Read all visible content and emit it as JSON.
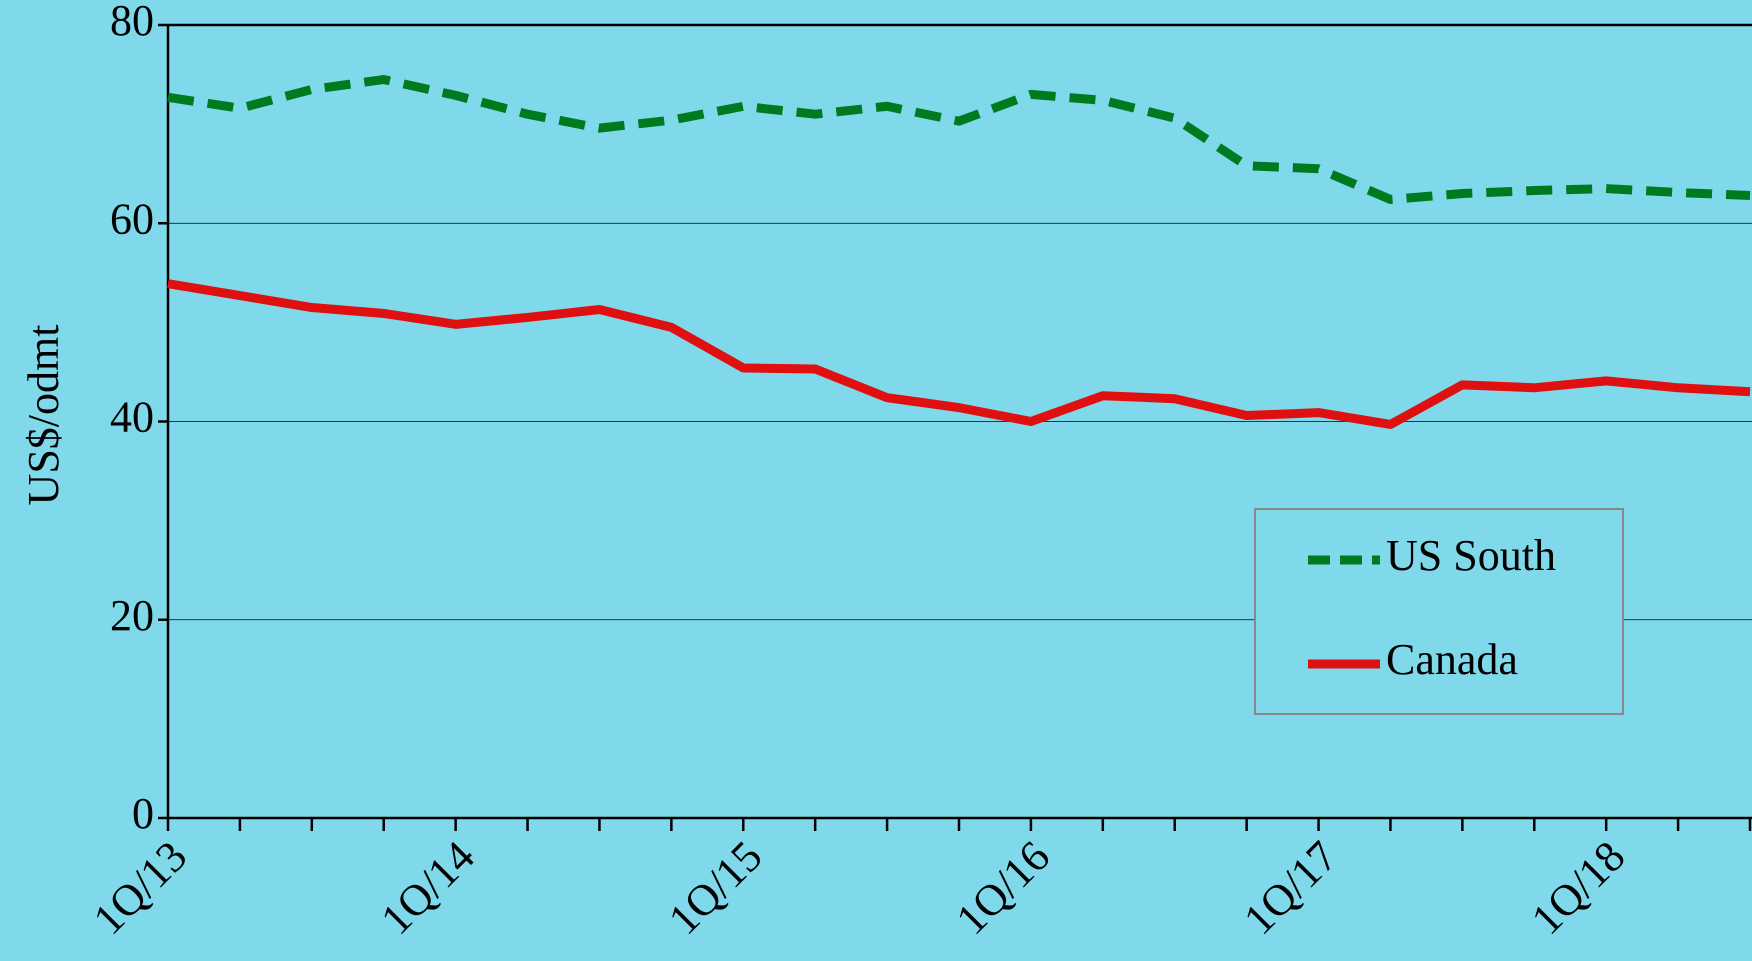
{
  "chart_data": {
    "type": "line",
    "y_label": "US$/odmt",
    "categories": [
      "1Q/13",
      null,
      null,
      null,
      "1Q/14",
      null,
      null,
      null,
      "1Q/15",
      null,
      null,
      null,
      "1Q/16",
      null,
      null,
      null,
      "1Q/17",
      null,
      null,
      null,
      "1Q/18",
      null,
      null
    ],
    "series": [
      {
        "name": "US South",
        "color": "#007a1f",
        "dash": true,
        "values": [
          72.7,
          71.6,
          73.5,
          74.5,
          72.9,
          71.0,
          69.6,
          70.4,
          71.8,
          71.0,
          71.8,
          70.3,
          73.0,
          72.4,
          70.6,
          65.8,
          65.5,
          62.4,
          63.0,
          63.3,
          63.5,
          63.1,
          62.8
        ]
      },
      {
        "name": "Canada",
        "color": "#e01010",
        "dash": false,
        "values": [
          53.9,
          52.7,
          51.5,
          50.9,
          49.8,
          50.5,
          51.3,
          49.5,
          45.4,
          45.3,
          42.4,
          41.4,
          40.0,
          42.6,
          42.3,
          40.6,
          40.9,
          39.7,
          43.7,
          43.4,
          44.1,
          43.4,
          43.0
        ]
      }
    ],
    "ylim": [
      0,
      80
    ],
    "yticks": [
      0,
      20,
      40,
      60,
      80
    ],
    "grid": true,
    "legend": "lower right"
  }
}
